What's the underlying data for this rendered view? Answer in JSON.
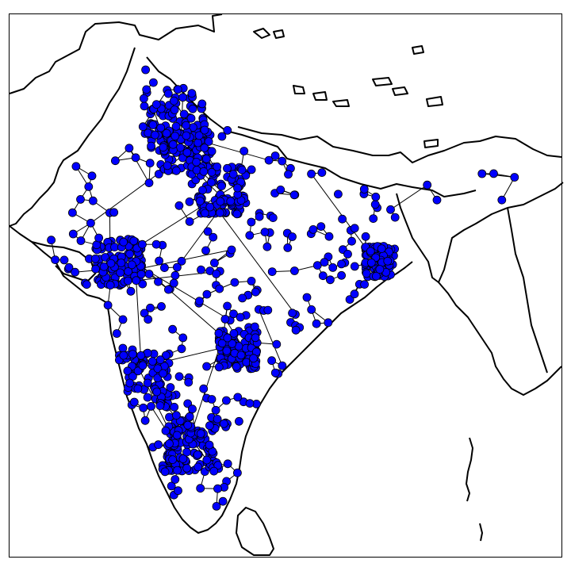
{
  "map": {
    "node_fill": "#0000ff",
    "node_stroke": "#000000",
    "edge_color": "#000000",
    "coast_color": "#000000",
    "frame_color": "#000000",
    "background": "#ffffff"
  }
}
